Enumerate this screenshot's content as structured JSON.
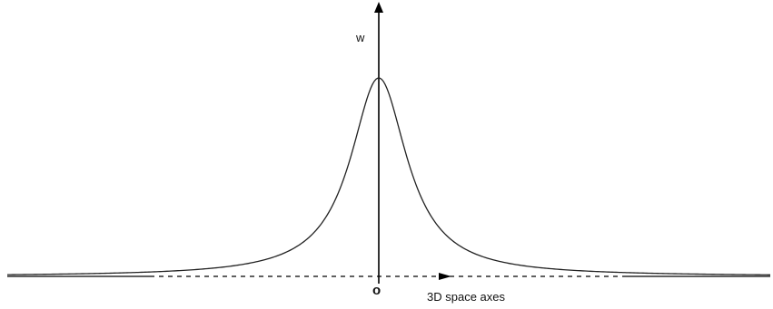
{
  "diagram": {
    "vertical_axis_label": "w",
    "horizontal_axis_label": "3D space axes",
    "origin_label": "o",
    "curve_shape": "lorentzian-peak",
    "line_color": "#000000",
    "curve_color": "#222222"
  }
}
